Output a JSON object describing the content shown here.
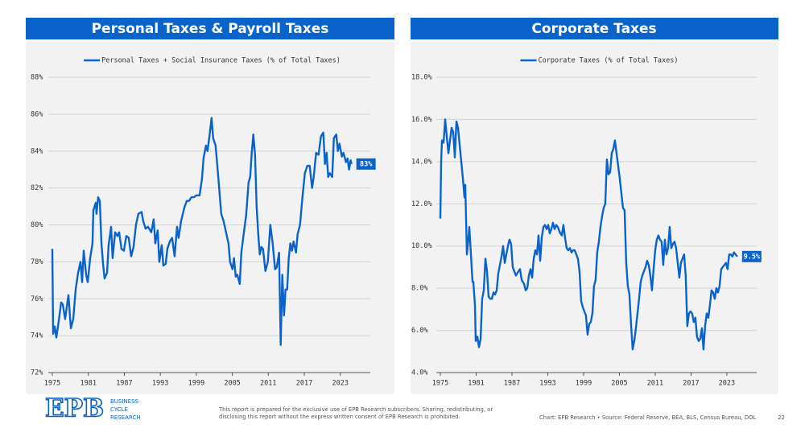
{
  "chart_data": [
    {
      "type": "line",
      "title": "Personal Taxes & Payroll Taxes",
      "x": [
        1975.0,
        1975.13,
        1975.4,
        1975.67,
        1976.07,
        1976.47,
        1976.74,
        1977.14,
        1977.68,
        1978.08,
        1978.49,
        1978.89,
        1979.29,
        1979.69,
        1979.96,
        1980.23,
        1980.63,
        1980.9,
        1981.3,
        1981.7,
        1981.84,
        1982.24,
        1982.37,
        1982.64,
        1982.91,
        1983.18,
        1983.45,
        1983.71,
        1984.12,
        1984.38,
        1984.79,
        1985.05,
        1985.46,
        1985.86,
        1986.13,
        1986.53,
        1986.93,
        1987.33,
        1987.73,
        1988.14,
        1988.54,
        1988.94,
        1989.34,
        1989.88,
        1990.15,
        1990.55,
        1990.95,
        1991.49,
        1991.89,
        1992.16,
        1992.56,
        1992.83,
        1993.23,
        1993.5,
        1993.9,
        1994.17,
        1994.57,
        1994.97,
        1995.38,
        1995.78,
        1996.05,
        1996.45,
        1996.98,
        1997.39,
        1997.79,
        1998.19,
        1998.59,
        1999.0,
        1999.54,
        1999.94,
        2000.2,
        2000.62,
        2000.87,
        2001.26,
        2001.54,
        2001.81,
        2002.21,
        2002.48,
        2002.88,
        2003.15,
        2003.55,
        2003.95,
        2004.36,
        2004.62,
        2005.03,
        2005.29,
        2005.56,
        2005.83,
        2006.23,
        2006.5,
        2006.9,
        2007.3,
        2007.71,
        2007.98,
        2008.24,
        2008.51,
        2008.78,
        2009.05,
        2009.32,
        2009.58,
        2009.85,
        2010.12,
        2010.52,
        2010.92,
        2011.33,
        2011.73,
        2012.13,
        2012.4,
        2012.8,
        2013.07,
        2013.34,
        2013.61,
        2013.87,
        2014.14,
        2014.41,
        2014.68,
        2014.95,
        2015.21,
        2015.62,
        2015.88,
        2016.29,
        2016.69,
        2017.09,
        2017.49,
        2017.9,
        2018.3,
        2018.57,
        2018.97,
        2019.37,
        2019.77,
        2020.17,
        2020.44,
        2020.71,
        2020.98,
        2021.25,
        2021.65,
        2021.92,
        2022.32,
        2022.59,
        2022.86,
        2023.26,
        2023.53,
        2023.94,
        2024.2,
        2024.46,
        2024.73,
        2024.87
      ],
      "series": [
        {
          "name": "Personal Taxes + Social Insurance Taxes (% of Total Taxes)",
          "color": "#0a63c9",
          "last_label": "83%",
          "values": [
            78.7,
            74.1,
            74.5,
            73.9,
            74.8,
            75.8,
            75.7,
            74.9,
            76.2,
            74.4,
            74.9,
            76.5,
            77.4,
            78.0,
            76.9,
            78.6,
            77.3,
            76.9,
            78.2,
            79.0,
            80.8,
            81.2,
            80.6,
            81.5,
            81.3,
            79.0,
            77.9,
            77.1,
            77.4,
            78.9,
            79.9,
            78.2,
            79.6,
            79.4,
            79.6,
            78.7,
            78.6,
            79.4,
            79.3,
            78.3,
            78.8,
            80.0,
            80.6,
            80.7,
            80.2,
            79.8,
            79.9,
            79.6,
            80.3,
            79.0,
            79.7,
            78.0,
            78.9,
            77.8,
            77.9,
            78.7,
            79.1,
            79.3,
            78.3,
            79.9,
            79.3,
            80.2,
            80.9,
            81.3,
            81.3,
            81.5,
            81.5,
            81.6,
            81.6,
            82.5,
            83.6,
            84.3,
            84.0,
            85.0,
            85.8,
            84.7,
            84.3,
            83.3,
            81.7,
            80.6,
            80.2,
            79.6,
            79.0,
            78.0,
            77.6,
            78.2,
            77.2,
            77.3,
            76.8,
            78.5,
            79.5,
            80.5,
            82.3,
            82.6,
            83.9,
            84.9,
            83.8,
            81.0,
            79.5,
            78.4,
            78.8,
            78.7,
            77.5,
            78.0,
            80.0,
            79.0,
            77.6,
            77.7,
            78.5,
            73.5,
            77.3,
            75.1,
            76.5,
            76.5,
            78.2,
            79.0,
            78.6,
            79.1,
            78.5,
            79.5,
            80.0,
            81.5,
            82.8,
            83.2,
            83.2,
            82.0,
            82.6,
            83.9,
            83.8,
            84.8,
            85.0,
            83.3,
            83.9,
            82.6,
            82.8,
            82.6,
            84.7,
            84.9,
            84.0,
            84.4,
            83.7,
            83.9,
            83.4,
            83.6,
            83.0,
            83.5,
            83.3
          ]
        }
      ],
      "xlim": [
        1975,
        2028
      ],
      "xticks": [
        1975,
        1981,
        1987,
        1993,
        1999,
        2005,
        2011,
        2017,
        2023
      ],
      "ylim": [
        72,
        88
      ],
      "yticks": [
        {
          "value": 72,
          "label": "72%"
        },
        {
          "value": 74,
          "label": "74%"
        },
        {
          "value": 76,
          "label": "76%"
        },
        {
          "value": 78,
          "label": "78%"
        },
        {
          "value": 80,
          "label": "80%"
        },
        {
          "value": 82,
          "label": "82%"
        },
        {
          "value": 84,
          "label": "84%"
        },
        {
          "value": 86,
          "label": "86%"
        },
        {
          "value": 88,
          "label": "88%"
        }
      ],
      "grid": true,
      "legend": "top"
    },
    {
      "type": "line",
      "title": "Corporate Taxes",
      "x": [
        1975.0,
        1975.13,
        1975.27,
        1975.54,
        1975.81,
        1976.08,
        1976.35,
        1976.62,
        1976.89,
        1977.16,
        1977.43,
        1977.7,
        1977.97,
        1978.24,
        1978.51,
        1978.78,
        1979.04,
        1979.18,
        1979.45,
        1979.72,
        1979.85,
        1980.12,
        1980.39,
        1980.53,
        1980.8,
        1980.93,
        1981.2,
        1981.47,
        1981.74,
        1982.01,
        1982.28,
        1982.55,
        1982.82,
        1983.09,
        1983.36,
        1983.63,
        1983.9,
        1984.17,
        1984.44,
        1984.71,
        1984.98,
        1985.25,
        1985.52,
        1985.79,
        1986.06,
        1986.33,
        1986.59,
        1986.86,
        1987.13,
        1987.4,
        1987.67,
        1988.08,
        1988.35,
        1988.62,
        1989.02,
        1989.29,
        1989.56,
        1989.83,
        1990.1,
        1990.37,
        1990.64,
        1990.91,
        1991.18,
        1991.45,
        1991.72,
        1991.99,
        1992.26,
        1992.53,
        1992.8,
        1993.07,
        1993.33,
        1993.6,
        1993.87,
        1994.14,
        1994.41,
        1994.68,
        1995.09,
        1995.35,
        1995.62,
        1995.89,
        1996.16,
        1996.43,
        1996.7,
        1996.97,
        1997.24,
        1997.51,
        1997.78,
        1998.05,
        1998.32,
        1998.59,
        1998.86,
        1999.13,
        1999.4,
        1999.67,
        1999.94,
        2000.21,
        2000.48,
        2000.75,
        2001.02,
        2001.29,
        2001.56,
        2001.83,
        2002.09,
        2002.36,
        2002.63,
        2002.9,
        2003.17,
        2003.44,
        2003.71,
        2003.98,
        2004.25,
        2004.52,
        2004.79,
        2005.06,
        2005.33,
        2005.6,
        2005.87,
        2006.14,
        2006.41,
        2006.68,
        2006.95,
        2007.22,
        2007.49,
        2007.76,
        2008.03,
        2008.3,
        2008.57,
        2008.83,
        2009.1,
        2009.37,
        2009.64,
        2009.91,
        2010.18,
        2010.45,
        2010.72,
        2010.99,
        2011.26,
        2011.53,
        2011.8,
        2012.07,
        2012.34,
        2012.61,
        2012.88,
        2013.15,
        2013.42,
        2013.69,
        2013.96,
        2014.23,
        2014.5,
        2014.77,
        2015.04,
        2015.31,
        2015.57,
        2015.84,
        2016.11,
        2016.38,
        2016.65,
        2016.92,
        2017.19,
        2017.46,
        2017.73,
        2018.0,
        2018.27,
        2018.54,
        2018.81,
        2019.08,
        2019.35,
        2019.62,
        2019.89,
        2020.16,
        2020.43,
        2020.7,
        2020.97,
        2021.24,
        2021.51,
        2021.78,
        2022.05,
        2022.31,
        2022.58,
        2022.85,
        2023.12,
        2023.39,
        2023.66,
        2023.93,
        2024.2,
        2024.47,
        2024.74
      ],
      "series": [
        {
          "name": "Corporate Taxes (% of Total Taxes)",
          "color": "#0a63c9",
          "last_label": "9.5%",
          "values": [
            11.3,
            14.0,
            15.0,
            14.9,
            16.0,
            15.2,
            14.4,
            15.0,
            15.6,
            15.4,
            14.2,
            15.9,
            15.6,
            14.8,
            14.0,
            13.2,
            12.3,
            12.9,
            9.6,
            10.4,
            10.9,
            9.6,
            8.3,
            8.3,
            7.2,
            5.5,
            5.7,
            5.2,
            5.6,
            7.5,
            7.9,
            9.4,
            8.8,
            7.6,
            7.5,
            7.5,
            7.8,
            7.7,
            7.9,
            8.7,
            9.1,
            9.5,
            10.0,
            9.2,
            9.6,
            10.0,
            10.3,
            10.1,
            9.0,
            8.8,
            8.6,
            8.8,
            8.9,
            8.4,
            8.2,
            7.9,
            8.0,
            8.6,
            8.9,
            8.5,
            9.4,
            9.8,
            9.6,
            10.5,
            9.3,
            10.4,
            10.9,
            11.0,
            10.8,
            11.0,
            10.6,
            10.8,
            11.1,
            10.8,
            11.0,
            10.9,
            10.6,
            10.5,
            11.0,
            10.4,
            9.9,
            9.8,
            9.9,
            9.7,
            9.8,
            9.8,
            9.6,
            9.4,
            8.8,
            7.4,
            7.1,
            6.9,
            6.7,
            5.8,
            6.3,
            6.4,
            6.8,
            8.1,
            8.4,
            9.7,
            10.2,
            10.9,
            11.4,
            11.8,
            12.0,
            14.1,
            13.4,
            13.5,
            14.4,
            14.6,
            15.0,
            14.4,
            13.8,
            13.2,
            12.5,
            11.8,
            11.7,
            9.2,
            8.1,
            7.7,
            6.3,
            5.1,
            5.5,
            6.1,
            6.8,
            7.5,
            8.3,
            8.6,
            8.8,
            9.0,
            9.3,
            9.1,
            8.6,
            7.9,
            8.9,
            9.8,
            10.3,
            10.5,
            10.3,
            10.2,
            9.1,
            10.3,
            9.6,
            9.9,
            10.9,
            9.9,
            10.1,
            10.2,
            9.9,
            9.2,
            8.5,
            9.2,
            9.4,
            9.6,
            8.6,
            6.2,
            6.8,
            6.9,
            6.8,
            6.4,
            6.6,
            5.7,
            5.5,
            5.6,
            6.1,
            5.1,
            6.2,
            6.8,
            6.6,
            7.2,
            7.9,
            7.8,
            7.5,
            8.0,
            7.8,
            8.1,
            8.9,
            9.0,
            9.1,
            9.2,
            8.9,
            9.6,
            9.6,
            9.5,
            9.7,
            9.6,
            9.5
          ]
        }
      ],
      "xlim": [
        1975,
        2028
      ],
      "xticks": [
        1975,
        1981,
        1987,
        1993,
        1999,
        2005,
        2011,
        2017,
        2023
      ],
      "ylim": [
        4,
        18
      ],
      "yticks": [
        {
          "value": 4,
          "label": "4.0%"
        },
        {
          "value": 6,
          "label": "6.0%"
        },
        {
          "value": 8,
          "label": "8.0%"
        },
        {
          "value": 10,
          "label": "10.0%"
        },
        {
          "value": 12,
          "label": "12.0%"
        },
        {
          "value": 14,
          "label": "14.0%"
        },
        {
          "value": 16,
          "label": "16.0%"
        },
        {
          "value": 18,
          "label": "18.0%"
        }
      ],
      "grid": true,
      "legend": "top"
    }
  ],
  "footer": {
    "logo": "EPB",
    "brand": [
      "BUSINESS",
      "CYCLE",
      "RESEARCH"
    ],
    "disclaimer": [
      "This report is prepared for the exclusive use of EPB Research subscribers. Sharing, redistributing, or",
      "disclosing this report without the express written consent of EPB Research is prohibited."
    ],
    "source": "Chart: EPB Research  •  Source: Federal Reserve, BEA, BLS, Census Bureau, DOL",
    "page": "22"
  }
}
